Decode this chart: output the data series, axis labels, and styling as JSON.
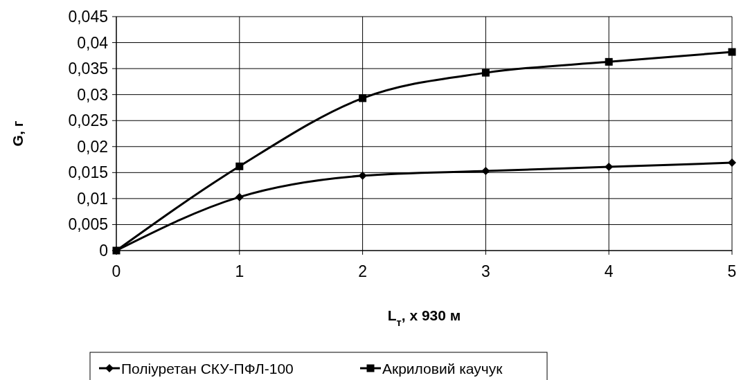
{
  "chart_data": {
    "type": "line",
    "xlabel": "L$_{т}$,  x  930 м",
    "ylabel": "G,   г",
    "x": [
      0,
      1,
      2,
      3,
      4,
      5
    ],
    "series": [
      {
        "name": "Поліуретан СКУ-ПФЛ-100",
        "color": "#000000",
        "marker": "diamond",
        "values": [
          0,
          0.0103,
          0.0144,
          0.0153,
          0.0161,
          0.0169
        ]
      },
      {
        "name": "Акриловий каучук",
        "color": "#000000",
        "marker": "square",
        "values": [
          0,
          0.0162,
          0.0293,
          0.0342,
          0.0363,
          0.0382
        ]
      }
    ],
    "xlim": [
      0,
      5
    ],
    "xticks": [
      0,
      1,
      2,
      3,
      4,
      5
    ],
    "ylim": [
      0,
      0.045
    ],
    "yticks": [
      0,
      {
        "value": 0.005,
        "label": "0,005"
      },
      {
        "value": 0.01,
        "label": "0,01"
      },
      {
        "value": 0.015,
        "label": "0,015"
      },
      {
        "value": 0.02,
        "label": "0,02"
      },
      {
        "value": 0.025,
        "label": "0,025"
      },
      {
        "value": 0.03,
        "label": "0,03"
      },
      {
        "value": 0.035,
        "label": "0,035"
      },
      {
        "value": 0.04,
        "label": "0,04"
      },
      {
        "value": 0.045,
        "label": "0,045"
      }
    ],
    "grid": true,
    "legend": "bottom",
    "line_style": "solid"
  }
}
